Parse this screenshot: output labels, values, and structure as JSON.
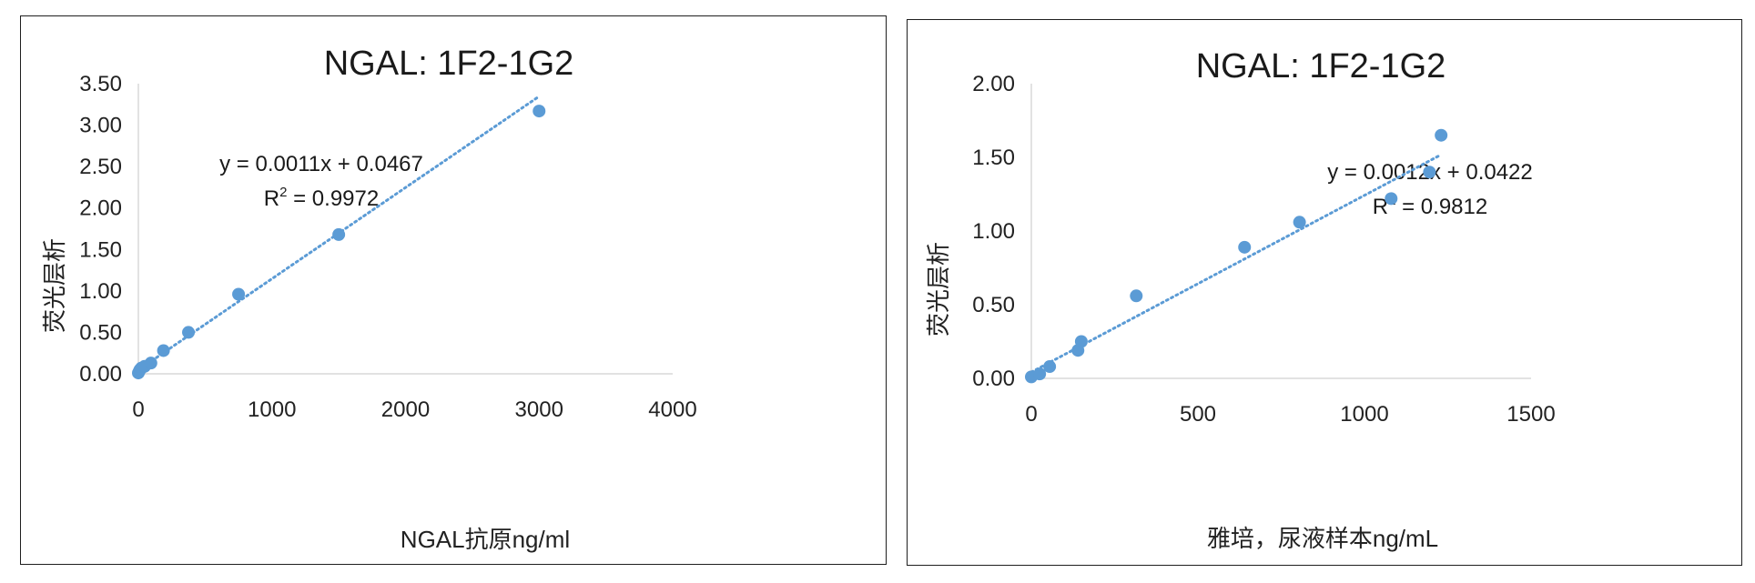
{
  "chart_data": [
    {
      "type": "scatter",
      "title": "NGAL: 1F2-1G2",
      "xlabel": "NGAL抗原ng/ml",
      "ylabel": "荧光层析",
      "xlim": [
        0,
        4000
      ],
      "ylim": [
        0,
        3.5
      ],
      "xticks": [
        "0",
        "1000",
        "2000",
        "3000",
        "4000"
      ],
      "yticks": [
        "0.00",
        "0.50",
        "1.00",
        "1.50",
        "2.00",
        "2.50",
        "3.00",
        "3.50"
      ],
      "grid": false,
      "legend": "none",
      "color": "#5b9bd5",
      "series": [
        {
          "x": [
            0,
            6,
            12,
            23,
            47,
            94,
            188,
            375,
            750,
            1500,
            3000
          ],
          "y": [
            0.01,
            0.03,
            0.05,
            0.07,
            0.09,
            0.13,
            0.28,
            0.5,
            0.96,
            1.68,
            3.17
          ]
        }
      ],
      "trendline": {
        "type": "linear",
        "style": "dotted",
        "slope": 0.0011,
        "intercept": 0.0467,
        "x_range": [
          0,
          3000
        ],
        "equation": "y = 0.0011x + 0.0467",
        "r2_prefix": "R",
        "r2_sup": "2",
        "r2_value": " = 0.9972"
      }
    },
    {
      "type": "scatter",
      "title": "NGAL: 1F2-1G2",
      "xlabel": "雅培，尿液样本ng/mL",
      "ylabel": "荧光层析",
      "xlim": [
        0,
        1500
      ],
      "ylim": [
        0,
        2.0
      ],
      "xticks": [
        "0",
        "500",
        "1000",
        "1500"
      ],
      "yticks": [
        "0.00",
        "0.50",
        "1.00",
        "1.50",
        "2.00"
      ],
      "grid": false,
      "legend": "none",
      "color": "#5b9bd5",
      "series": [
        {
          "x": [
            0,
            25,
            55,
            140,
            150,
            315,
            640,
            805,
            1080,
            1195,
            1230
          ],
          "y": [
            0.01,
            0.03,
            0.08,
            0.19,
            0.25,
            0.56,
            0.89,
            1.06,
            1.22,
            1.4,
            1.65
          ]
        }
      ],
      "trendline": {
        "type": "linear",
        "style": "dotted",
        "slope": 0.0012,
        "intercept": 0.0422,
        "x_range": [
          0,
          1230
        ],
        "equation": "y = 0.0012x + 0.0422",
        "r2_prefix": "R",
        "r2_sup": "2",
        "r2_value": " = 0.9812"
      }
    }
  ]
}
